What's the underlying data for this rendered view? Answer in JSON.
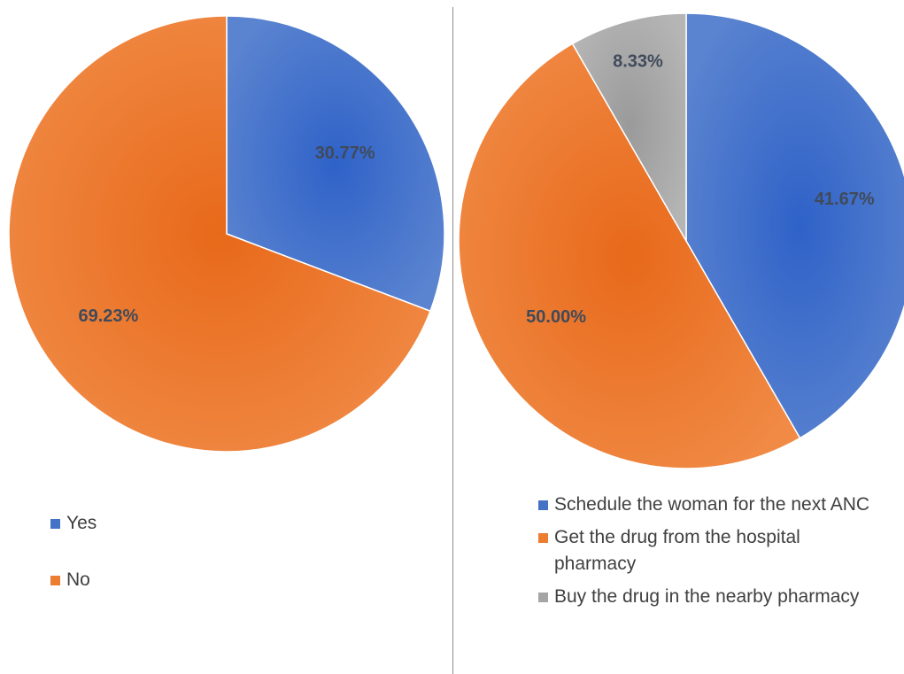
{
  "chart_data": [
    {
      "type": "pie",
      "slices": [
        {
          "label": "Yes",
          "value": 30.77,
          "display": "30.77%",
          "color": "#4472c4"
        },
        {
          "label": "No",
          "value": 69.23,
          "display": "69.23%",
          "color": "#ed7d31"
        }
      ],
      "legend": "bottom-left"
    },
    {
      "type": "pie",
      "slices": [
        {
          "label": "Schedule the woman for the next ANC",
          "value": 41.67,
          "display": "41.67%",
          "color": "#4472c4"
        },
        {
          "label": "Get the drug from the hospital pharmacy",
          "value": 50.0,
          "display": "50.00%",
          "color": "#ed7d31"
        },
        {
          "label": "Buy the drug in the nearby pharmacy",
          "value": 8.33,
          "display": "8.33%",
          "color": "#a5a5a5"
        }
      ],
      "legend": "bottom"
    }
  ]
}
